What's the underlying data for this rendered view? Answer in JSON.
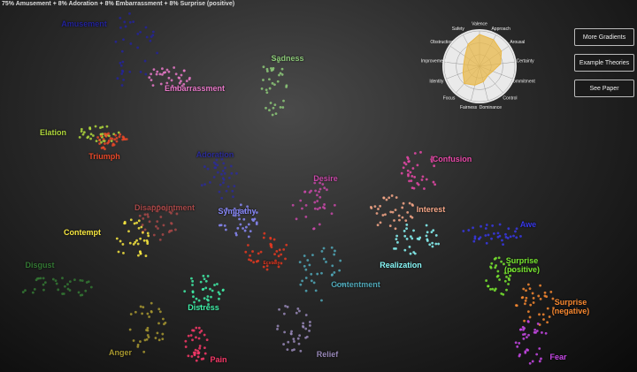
{
  "caption": "75% Amusement + 8% Adoration + 8% Embarrassment + 8% Surprise (positive)",
  "buttons": [
    "More Gradients",
    "Example Theories",
    "See Paper"
  ],
  "radar": {
    "axes": [
      "Valence",
      "Approach",
      "Arousal",
      "Certainty",
      "Commitment",
      "Control",
      "Dominance",
      "Fairness",
      "Focus",
      "Identity",
      "Improvement",
      "Obstruction",
      "Safety"
    ],
    "values": [
      0.9,
      0.85,
      0.75,
      0.6,
      0.4,
      0.35,
      0.45,
      0.55,
      0.65,
      0.5,
      0.45,
      0.5,
      0.7
    ],
    "range": [
      0,
      1
    ],
    "color": "#e8b84a"
  },
  "clusters": [
    {
      "label": "Amusement",
      "color": "#23239a"
    },
    {
      "label": "Embarrassment",
      "color": "#e878c8"
    },
    {
      "label": "Sadness",
      "color": "#8cc878"
    },
    {
      "label": "Elation",
      "color": "#b0d83c"
    },
    {
      "label": "Triumph",
      "color": "#e84828"
    },
    {
      "label": "Adoration",
      "color": "#2c2c98"
    },
    {
      "label": "Desire",
      "color": "#c848a8"
    },
    {
      "label": "Confusion",
      "color": "#e848a8"
    },
    {
      "label": "Disappointment",
      "color": "#a84848"
    },
    {
      "label": "Sympathy",
      "color": "#8888f8"
    },
    {
      "label": "Interest",
      "color": "#f8a888"
    },
    {
      "label": "Awe",
      "color": "#3838e8"
    },
    {
      "label": "Contempt",
      "color": "#f8e840"
    },
    {
      "label": "Realization",
      "color": "#88f8f8"
    },
    {
      "label": "Disgust",
      "color": "#347834"
    },
    {
      "label": "Surprise (positive)",
      "color": "#78e830"
    },
    {
      "label": "Ecstasy",
      "color": "#e83820"
    },
    {
      "label": "Contentment",
      "color": "#50a8b8"
    },
    {
      "label": "Surprise (negative)",
      "color": "#f88830"
    },
    {
      "label": "Distress",
      "color": "#40f0a8"
    },
    {
      "label": "Anger",
      "color": "#a89830"
    },
    {
      "label": "Pain",
      "color": "#f83868"
    },
    {
      "label": "Relief",
      "color": "#9888b8"
    },
    {
      "label": "Fear",
      "color": "#c848e8"
    }
  ]
}
